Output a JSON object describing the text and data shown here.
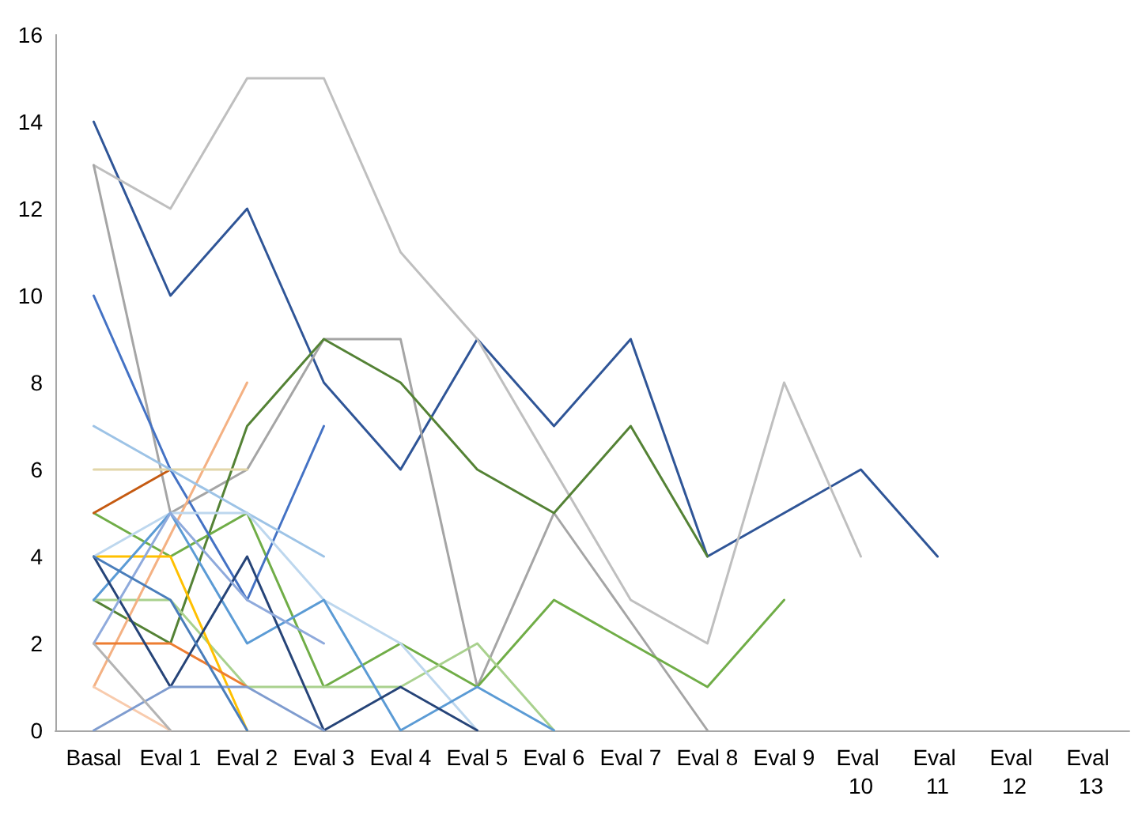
{
  "chart_data": {
    "type": "line",
    "categories": [
      "Basal",
      "Eval 1",
      "Eval 2",
      "Eval 3",
      "Eval 4",
      "Eval 5",
      "Eval 6",
      "Eval 7",
      "Eval 8",
      "Eval 9",
      "Eval 10",
      "Eval 11",
      "Eval 12",
      "Eval 13"
    ],
    "ylim": [
      0,
      16
    ],
    "yticks": [
      0,
      2,
      4,
      6,
      8,
      10,
      12,
      14,
      16
    ],
    "marker": "none",
    "line_style": "solid",
    "series": [
      {
        "color": "#2f5597",
        "values": [
          14,
          10,
          12,
          8,
          6,
          9,
          7,
          9,
          4,
          5,
          6,
          4,
          null,
          null
        ]
      },
      {
        "color": "#bfbfbf",
        "values": [
          13,
          12,
          15,
          15,
          11,
          9,
          6,
          3,
          2,
          8,
          4,
          null,
          null,
          null
        ]
      },
      {
        "color": "#a5a5a5",
        "values": [
          13,
          5,
          6,
          9,
          9,
          1,
          5,
          2.5,
          0,
          null,
          null,
          null,
          null,
          null
        ]
      },
      {
        "color": "#548235",
        "values": [
          3,
          2,
          7,
          9,
          8,
          6,
          5,
          7,
          4,
          null,
          null,
          null,
          null,
          null
        ]
      },
      {
        "color": "#70ad47",
        "values": [
          5,
          4,
          5,
          1,
          2,
          1,
          3,
          2,
          1,
          3,
          null,
          null,
          null,
          null
        ]
      },
      {
        "color": "#a9d18e",
        "values": [
          3,
          3,
          1,
          1,
          1,
          2,
          0,
          null,
          null,
          null,
          null,
          null,
          null,
          null
        ]
      },
      {
        "color": "#4472c4",
        "values": [
          10,
          6,
          3,
          7,
          null,
          null,
          null,
          null,
          null,
          null,
          null,
          null,
          null,
          null
        ]
      },
      {
        "color": "#f4b183",
        "values": [
          1,
          4.5,
          8,
          null,
          null,
          null,
          null,
          null,
          null,
          null,
          null,
          null,
          null,
          null
        ]
      },
      {
        "color": "#c55a11",
        "values": [
          5,
          6,
          null,
          null,
          null,
          null,
          null,
          null,
          null,
          null,
          null,
          null,
          null,
          null
        ]
      },
      {
        "color": "#e2d6a8",
        "values": [
          6,
          6,
          6,
          null,
          null,
          null,
          null,
          null,
          null,
          null,
          null,
          null,
          null,
          null
        ]
      },
      {
        "color": "#ffc000",
        "values": [
          4,
          4,
          0,
          null,
          null,
          null,
          null,
          null,
          null,
          null,
          null,
          null,
          null,
          null
        ]
      },
      {
        "color": "#ed7d31",
        "values": [
          2,
          2,
          1,
          null,
          null,
          null,
          null,
          null,
          null,
          null,
          null,
          null,
          null,
          null
        ]
      },
      {
        "color": "#9dc3e6",
        "values": [
          7,
          6,
          5,
          4,
          null,
          null,
          null,
          null,
          null,
          null,
          null,
          null,
          null,
          null
        ]
      },
      {
        "color": "#bdd7ee",
        "values": [
          4,
          5,
          5,
          3,
          2,
          0,
          null,
          null,
          null,
          null,
          null,
          null,
          null,
          null
        ]
      },
      {
        "color": "#5b9bd5",
        "values": [
          3,
          5,
          2,
          3,
          0,
          1,
          0,
          null,
          null,
          null,
          null,
          null,
          null,
          null
        ]
      },
      {
        "color": "#264478",
        "values": [
          4,
          1,
          4,
          0,
          1,
          0,
          null,
          null,
          null,
          null,
          null,
          null,
          null,
          null
        ]
      },
      {
        "color": "#8faadc",
        "values": [
          2,
          5,
          3,
          2,
          null,
          null,
          null,
          null,
          null,
          null,
          null,
          null,
          null,
          null
        ]
      },
      {
        "color": "#f8cbad",
        "values": [
          1,
          0,
          null,
          null,
          null,
          null,
          null,
          null,
          null,
          null,
          null,
          null,
          null,
          null
        ]
      },
      {
        "color": "#7f9ccf",
        "values": [
          0,
          1,
          1,
          0,
          null,
          null,
          null,
          null,
          null,
          null,
          null,
          null,
          null,
          null
        ]
      },
      {
        "color": "#b4b4b4",
        "values": [
          2,
          0,
          null,
          null,
          null,
          null,
          null,
          null,
          null,
          null,
          null,
          null,
          null,
          null
        ]
      },
      {
        "color": "#4a7ebb",
        "values": [
          4,
          3,
          0,
          null,
          null,
          null,
          null,
          null,
          null,
          null,
          null,
          null,
          null,
          null
        ]
      }
    ]
  }
}
